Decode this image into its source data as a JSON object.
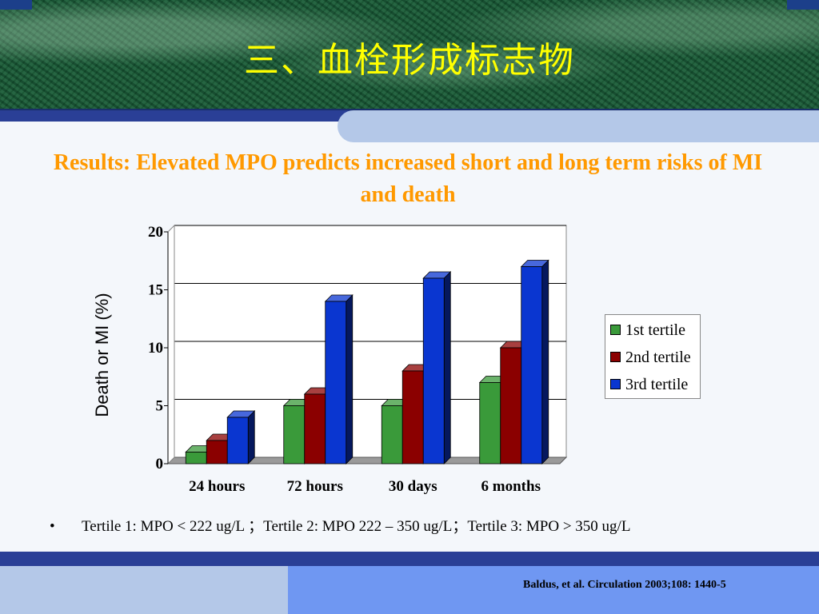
{
  "slide": {
    "title": "三、血栓形成标志物",
    "subtitle": "Results:  Elevated MPO predicts increased short and long term risks of MI and death",
    "footnote_bullet": "•",
    "footnote": "Tertile 1: MPO < 222 ug/L  ；Tertile 2: MPO 222 – 350 ug/L；Tertile 3: MPO > 350 ug/L",
    "citation": "Baldus, et al. Circulation 2003;108: 1440-5"
  },
  "colors": {
    "tertile1": "#3a9a3a",
    "tertile2": "#8b0000",
    "tertile3": "#0a36d0",
    "title": "#ffff00",
    "subtitle": "#ff9900"
  },
  "chart_data": {
    "type": "bar",
    "style": "3d clustered",
    "categories": [
      "24 hours",
      "72 hours",
      "30 days",
      "6 months"
    ],
    "series": [
      {
        "name": "1st tertile",
        "values": [
          1,
          5,
          5,
          7
        ]
      },
      {
        "name": "2nd tertile",
        "values": [
          2,
          6,
          8,
          10
        ]
      },
      {
        "name": "3rd tertile",
        "values": [
          4,
          14,
          16,
          17
        ]
      }
    ],
    "ylabel": "Death or MI (%)",
    "xlabel": "",
    "ylim": [
      0,
      20
    ],
    "yticks": [
      0,
      5,
      10,
      15,
      20
    ],
    "grid": true,
    "legend_position": "right"
  }
}
